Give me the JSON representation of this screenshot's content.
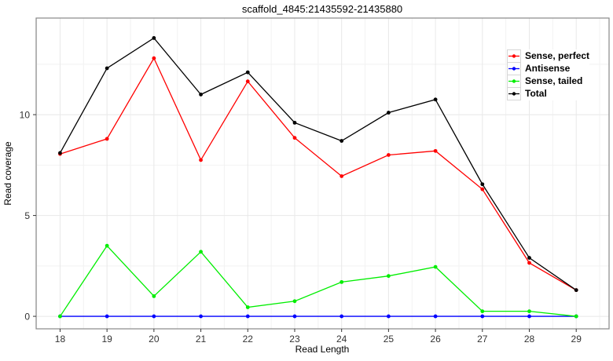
{
  "chart_data": {
    "type": "line",
    "title": "scaffold_4845:21435592-21435880",
    "xlabel": "Read Length",
    "ylabel": "Read coverage",
    "x": [
      18,
      19,
      20,
      21,
      22,
      23,
      24,
      25,
      26,
      27,
      28,
      29
    ],
    "series": [
      {
        "name": "Sense, perfect",
        "color": "#ff0000",
        "values": [
          8.05,
          8.8,
          12.8,
          7.75,
          11.65,
          8.85,
          6.95,
          8.0,
          8.2,
          6.3,
          2.65,
          1.3
        ]
      },
      {
        "name": "Antisense",
        "color": "#0000ff",
        "values": [
          0,
          0,
          0,
          0,
          0,
          0,
          0,
          0,
          0,
          0,
          0,
          0
        ]
      },
      {
        "name": "Sense, tailed",
        "color": "#00ee00",
        "values": [
          0,
          3.5,
          1.0,
          3.2,
          0.45,
          0.75,
          1.7,
          2.0,
          2.45,
          0.25,
          0.25,
          0
        ]
      },
      {
        "name": "Total",
        "color": "#000000",
        "values": [
          8.1,
          12.3,
          13.8,
          11.0,
          12.1,
          9.6,
          8.7,
          10.1,
          10.75,
          6.55,
          2.9,
          1.3
        ]
      }
    ],
    "xticks": [
      18,
      19,
      20,
      21,
      22,
      23,
      24,
      25,
      26,
      27,
      28,
      29
    ],
    "yticks": [
      0,
      5,
      10
    ],
    "xticks_minor": [
      17.5,
      18.5,
      19.5,
      20.5,
      21.5,
      22.5,
      23.5,
      24.5,
      25.5,
      26.5,
      27.5,
      28.5,
      29.5
    ],
    "yticks_minor": [
      2.5,
      7.5,
      12.5
    ],
    "xlim": [
      17.49,
      29.7
    ],
    "ylim": [
      -0.62,
      14.79
    ],
    "grid": {
      "on": true,
      "major_color": "#e8e8e8",
      "minor_color": "#f2f2f2"
    },
    "panel_border_color": "#888888",
    "tick_mark_color": "#333333",
    "legend_position": "top-right"
  }
}
